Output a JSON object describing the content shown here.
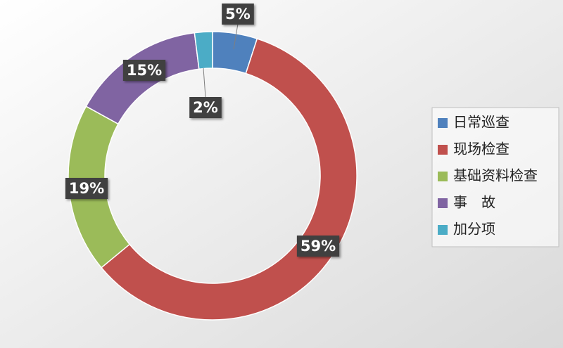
{
  "chart_data": {
    "type": "donut",
    "categories": [
      "日常巡查",
      "现场检查",
      "基础资料检查",
      "事　故",
      "加分项"
    ],
    "values": [
      5,
      59,
      19,
      15,
      2
    ],
    "value_labels": [
      "5%",
      "59%",
      "19%",
      "15%",
      "2%"
    ],
    "colors": [
      "#4f81bd",
      "#c0504d",
      "#9bbb59",
      "#8064a2",
      "#4bacc6"
    ],
    "legend": "right"
  }
}
